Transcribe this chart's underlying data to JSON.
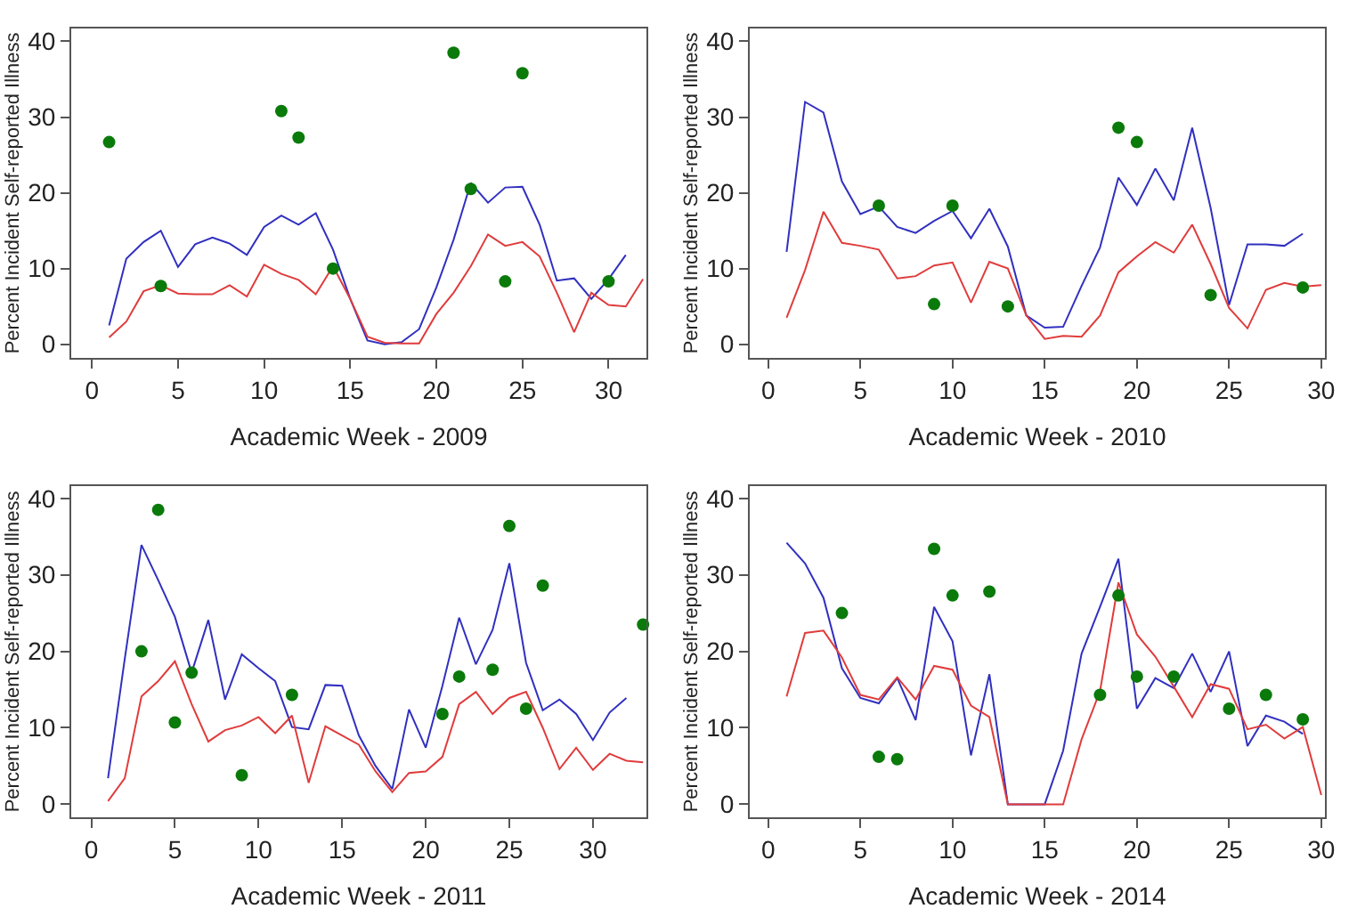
{
  "chart_data": [
    {
      "type": "line",
      "xlabel": "Academic Week - 2009",
      "ylabel": "Percent Incident Self-reported Illness",
      "xlim": [
        -1.2,
        32.2
      ],
      "ylim": [
        -1.8,
        41.7
      ],
      "xticks": [
        0,
        5,
        10,
        15,
        20,
        25,
        30
      ],
      "yticks": [
        0,
        10,
        20,
        30,
        40
      ],
      "grid": false,
      "series": [
        {
          "color": "#3030c0",
          "x": [
            1,
            2,
            3,
            4,
            5,
            6,
            7,
            8,
            9,
            10,
            11,
            12,
            13,
            14,
            15,
            16,
            17,
            18,
            19,
            20,
            21,
            22,
            23,
            24,
            25,
            26,
            27,
            28,
            29,
            30,
            31
          ],
          "values": [
            2.5,
            11.3,
            13.5,
            15,
            10.2,
            13.2,
            14.1,
            13.3,
            11.8,
            15.5,
            17,
            15.8,
            17.3,
            12.5,
            6,
            0.5,
            0,
            0.3,
            2,
            7.5,
            13.8,
            21.3,
            18.7,
            20.7,
            20.8,
            15.8,
            8.4,
            8.7,
            6,
            8.6,
            11.8
          ]
        },
        {
          "color": "#e03c3c",
          "x": [
            1,
            2,
            3,
            4,
            5,
            6,
            7,
            8,
            9,
            10,
            11,
            12,
            13,
            14,
            15,
            16,
            17,
            18,
            19,
            20,
            21,
            22,
            23,
            24,
            25,
            26,
            27,
            28,
            29,
            30,
            31,
            32
          ],
          "values": [
            0.9,
            3,
            7,
            7.8,
            6.7,
            6.6,
            6.6,
            7.8,
            6.3,
            10.5,
            9.3,
            8.5,
            6.6,
            10.3,
            6,
            1,
            0.2,
            0.1,
            0.1,
            4,
            6.8,
            10.3,
            14.5,
            13,
            13.5,
            11.6,
            6.8,
            1.6,
            6.8,
            5.2,
            5,
            8.6
          ]
        },
        {
          "type": "scatter",
          "marker": "circle",
          "color": "#0a7a0a",
          "x": [
            1,
            4,
            11,
            12,
            14,
            21,
            22,
            24,
            25,
            30
          ],
          "values": [
            26.7,
            7.7,
            30.8,
            27.3,
            10,
            38.5,
            20.5,
            8.3,
            35.8,
            8.3
          ]
        }
      ]
    },
    {
      "type": "line",
      "xlabel": "Academic Week - 2010",
      "ylabel": "Percent Incident Self-reported Illness",
      "xlim": [
        -1,
        30.2
      ],
      "ylim": [
        -1.8,
        41.7
      ],
      "xticks": [
        0,
        5,
        10,
        15,
        20,
        25,
        30
      ],
      "yticks": [
        0,
        10,
        20,
        30,
        40
      ],
      "grid": false,
      "series": [
        {
          "color": "#3030c0",
          "x": [
            1,
            2,
            3,
            4,
            5,
            6,
            7,
            8,
            9,
            10,
            11,
            12,
            13,
            14,
            15,
            16,
            17,
            18,
            19,
            20,
            21,
            22,
            23,
            24,
            25,
            26,
            27,
            28,
            29
          ],
          "values": [
            12.2,
            32,
            30.6,
            21.5,
            17.2,
            18.2,
            15.5,
            14.7,
            16.3,
            17.6,
            14,
            17.9,
            12.9,
            3.8,
            2.2,
            2.3,
            7.7,
            12.8,
            22,
            18.4,
            23.2,
            19,
            28.6,
            18,
            5.2,
            13.2,
            13.2,
            13,
            14.6
          ]
        },
        {
          "color": "#e03c3c",
          "x": [
            1,
            2,
            3,
            4,
            5,
            6,
            7,
            8,
            9,
            10,
            11,
            12,
            13,
            14,
            15,
            16,
            17,
            18,
            19,
            20,
            21,
            22,
            23,
            24,
            25,
            26,
            27,
            28,
            29,
            30
          ],
          "values": [
            3.5,
            9.8,
            17.5,
            13.4,
            13,
            12.5,
            8.7,
            9,
            10.4,
            10.8,
            5.5,
            10.9,
            10,
            3.8,
            0.7,
            1.1,
            1,
            3.8,
            9.5,
            11.6,
            13.5,
            12.1,
            15.8,
            10.6,
            4.8,
            2.1,
            7.2,
            8.1,
            7.6,
            7.8
          ]
        },
        {
          "type": "scatter",
          "marker": "circle",
          "color": "#0a7a0a",
          "x": [
            6,
            9,
            10,
            13,
            19,
            20,
            24,
            29
          ],
          "values": [
            18.3,
            5.3,
            18.3,
            5,
            28.6,
            26.7,
            6.5,
            7.5
          ]
        }
      ]
    },
    {
      "type": "line",
      "xlabel": "Academic Week - 2011",
      "ylabel": "Percent Incident Self-reported Illness",
      "xlim": [
        -1.2,
        33.2
      ],
      "ylim": [
        -1.7,
        41.6
      ],
      "xticks": [
        0,
        5,
        10,
        15,
        20,
        25,
        30
      ],
      "yticks": [
        0,
        10,
        20,
        30,
        40
      ],
      "grid": false,
      "series": [
        {
          "color": "#3030c0",
          "x": [
            1,
            2,
            3,
            4,
            5,
            6,
            7,
            8,
            9,
            10,
            11,
            12,
            13,
            14,
            15,
            16,
            17,
            18,
            19,
            20,
            21,
            22,
            23,
            24,
            25,
            26,
            27,
            28,
            29,
            30,
            31,
            32
          ],
          "values": [
            3.4,
            19,
            33.9,
            29.3,
            24.5,
            17.2,
            24.1,
            13.7,
            19.6,
            17.8,
            16.1,
            10.1,
            9.8,
            15.6,
            15.5,
            9,
            5,
            2,
            12.4,
            7.4,
            15.5,
            24.4,
            18.3,
            22.8,
            31.5,
            18.5,
            12.3,
            13.7,
            11.8,
            8.4,
            12,
            13.9
          ]
        },
        {
          "color": "#e03c3c",
          "x": [
            1,
            2,
            3,
            4,
            5,
            6,
            7,
            8,
            9,
            10,
            11,
            12,
            13,
            14,
            15,
            16,
            17,
            18,
            19,
            20,
            21,
            22,
            23,
            24,
            25,
            26,
            27,
            28,
            29,
            30,
            31,
            32,
            33
          ],
          "values": [
            0.4,
            3.4,
            14.1,
            16.1,
            18.7,
            13.1,
            8.2,
            9.7,
            10.3,
            11.4,
            9.3,
            11.6,
            2.8,
            10.2,
            9,
            7.8,
            4.3,
            1.6,
            4.1,
            4.3,
            6.2,
            13.1,
            14.7,
            11.8,
            13.9,
            14.7,
            10,
            4.6,
            7.4,
            4.5,
            6.6,
            5.7,
            5.5
          ]
        },
        {
          "type": "scatter",
          "marker": "circle",
          "color": "#0a7a0a",
          "x": [
            3,
            4,
            5,
            6,
            9,
            12,
            21,
            22,
            24,
            25,
            26,
            27,
            33
          ],
          "values": [
            20,
            38.5,
            10.7,
            17.2,
            3.8,
            14.3,
            11.8,
            16.7,
            17.6,
            36.4,
            12.5,
            28.6,
            23.5
          ]
        }
      ]
    },
    {
      "type": "line",
      "xlabel": "Academic Week - 2014",
      "ylabel": "Percent Incident Self-reported Illness",
      "xlim": [
        -1,
        30.2
      ],
      "ylim": [
        -1.7,
        41.6
      ],
      "xticks": [
        0,
        5,
        10,
        15,
        20,
        25,
        30
      ],
      "yticks": [
        0,
        10,
        20,
        30,
        40
      ],
      "grid": false,
      "series": [
        {
          "color": "#3030c0",
          "x": [
            1,
            2,
            3,
            4,
            5,
            6,
            7,
            8,
            9,
            10,
            11,
            12,
            13,
            14,
            15,
            16,
            17,
            18,
            19,
            20,
            21,
            22,
            23,
            24,
            25,
            26,
            27,
            28,
            29
          ],
          "values": [
            34.2,
            31.5,
            27,
            17.8,
            13.9,
            13.2,
            16.5,
            11,
            25.8,
            21.3,
            6.4,
            17,
            0,
            0,
            0,
            7,
            19.7,
            25.8,
            32.1,
            12.5,
            16.5,
            15.2,
            19.7,
            14.7,
            20,
            7.6,
            11.6,
            10.8,
            9.2
          ]
        },
        {
          "color": "#e03c3c",
          "x": [
            1,
            2,
            3,
            4,
            5,
            6,
            7,
            8,
            9,
            10,
            11,
            12,
            13,
            14,
            15,
            16,
            17,
            18,
            19,
            20,
            21,
            22,
            23,
            24,
            25,
            26,
            27,
            28,
            29,
            30
          ],
          "values": [
            14.1,
            22.4,
            22.7,
            19.2,
            14.3,
            13.7,
            16.6,
            13.7,
            18.1,
            17.6,
            12.9,
            11.4,
            0,
            0,
            0,
            0,
            8.5,
            14.8,
            29,
            22.2,
            19.3,
            15.4,
            11.4,
            15.7,
            15.1,
            9.8,
            10.4,
            8.6,
            10.1,
            1.2
          ]
        },
        {
          "type": "scatter",
          "marker": "circle",
          "color": "#0a7a0a",
          "x": [
            4,
            6,
            7,
            9,
            10,
            12,
            18,
            19,
            20,
            22,
            25,
            27,
            29
          ],
          "values": [
            25,
            6.2,
            5.9,
            33.4,
            27.3,
            27.8,
            14.3,
            27.3,
            16.7,
            16.7,
            12.5,
            14.3,
            11.1
          ]
        }
      ]
    }
  ]
}
